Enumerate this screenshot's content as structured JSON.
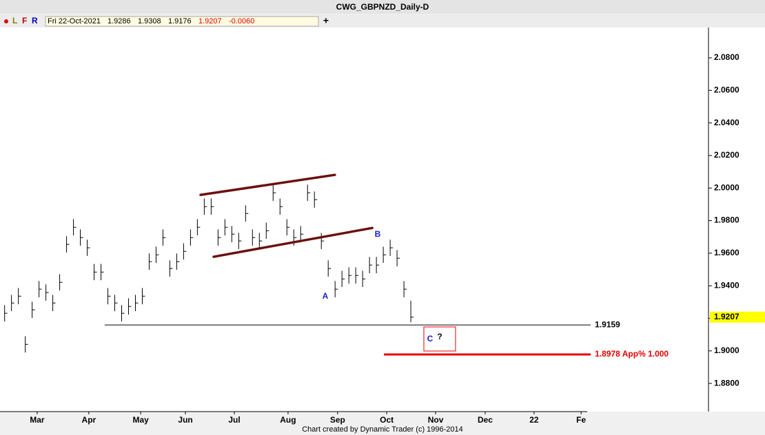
{
  "chart_data": {
    "type": "hlc",
    "title": "CWG_GBPNZD_Daily-D",
    "quote": {
      "date": "Fri 22-Oct-2021",
      "open": "1.9286",
      "high": "1.9308",
      "low": "1.9176",
      "close": "1.9207",
      "change": "-0.0060"
    },
    "toolbar": [
      "L",
      "F",
      "R"
    ],
    "footer": "Chart created by Dynamic Trader  (c) 1996-2014",
    "color": "#000000",
    "x": [
      2,
      5,
      8,
      11,
      14,
      17,
      20,
      23,
      26,
      29,
      32,
      35,
      38,
      41,
      44,
      47,
      50,
      53,
      56,
      59,
      62,
      65,
      68,
      71,
      74,
      77,
      80,
      83,
      86,
      89,
      92,
      95,
      98,
      101,
      104,
      107,
      110,
      113,
      116,
      119,
      122,
      125,
      128,
      131,
      134,
      137,
      140,
      143,
      146,
      149,
      152,
      155,
      158,
      161,
      164,
      167,
      170,
      173,
      176,
      179
    ],
    "high": [
      1.9281,
      1.9344,
      1.9386,
      1.909,
      1.9302,
      1.9429,
      1.9408,
      1.9344,
      1.9471,
      1.9704,
      1.9809,
      1.9746,
      1.9683,
      1.9534,
      1.9534,
      1.9386,
      1.9344,
      1.9281,
      1.9323,
      1.9344,
      1.9386,
      1.9598,
      1.964,
      1.9746,
      1.9556,
      1.9598,
      1.9661,
      1.9746,
      1.9809,
      1.9936,
      1.9936,
      1.9746,
      1.9809,
      1.9767,
      1.9725,
      1.9894,
      1.9746,
      1.9725,
      1.9788,
      2.0021,
      1.9936,
      1.9809,
      1.9746,
      1.9767,
      2.0021,
      1.9979,
      1.9725,
      1.9556,
      1.9429,
      1.9492,
      1.9513,
      1.9513,
      1.9492,
      1.9577,
      1.9577,
      1.964,
      1.9683,
      1.9619,
      1.9429,
      1.9308
    ],
    "low": [
      1.9181,
      1.9244,
      1.9286,
      1.899,
      1.9202,
      1.9329,
      1.9308,
      1.9244,
      1.9371,
      1.9604,
      1.9709,
      1.9646,
      1.9583,
      1.9434,
      1.9434,
      1.9286,
      1.9244,
      1.9181,
      1.9223,
      1.9244,
      1.9286,
      1.9498,
      1.954,
      1.9646,
      1.9456,
      1.9498,
      1.9561,
      1.9646,
      1.9709,
      1.9836,
      1.9836,
      1.9646,
      1.9709,
      1.9667,
      1.9625,
      1.9794,
      1.9646,
      1.9625,
      1.9688,
      1.9921,
      1.9836,
      1.9709,
      1.9646,
      1.9667,
      1.9921,
      1.9879,
      1.9625,
      1.9456,
      1.9329,
      1.9392,
      1.9413,
      1.9413,
      1.9392,
      1.9477,
      1.9477,
      1.954,
      1.9583,
      1.9519,
      1.9329,
      1.9176
    ],
    "close": [
      1.9231,
      1.9294,
      1.9336,
      1.904,
      1.9252,
      1.9379,
      1.9358,
      1.9294,
      1.9421,
      1.9654,
      1.9759,
      1.9696,
      1.9633,
      1.9484,
      1.9484,
      1.9336,
      1.9294,
      1.9231,
      1.9273,
      1.9294,
      1.9336,
      1.9548,
      1.959,
      1.9696,
      1.9506,
      1.9548,
      1.9611,
      1.9696,
      1.9759,
      1.9886,
      1.9886,
      1.9696,
      1.9759,
      1.9717,
      1.9675,
      1.9844,
      1.9696,
      1.9675,
      1.9738,
      1.9971,
      1.9886,
      1.9759,
      1.9696,
      1.9717,
      1.9971,
      1.9929,
      1.9675,
      1.9506,
      1.9379,
      1.9442,
      1.9463,
      1.9463,
      1.9442,
      1.9527,
      1.9527,
      1.959,
      1.9633,
      1.9569,
      1.9379,
      1.9207
    ],
    "xlim": [
      0,
      308.7
    ],
    "xticks": [
      {
        "value": 16.2,
        "label": "Mar"
      },
      {
        "value": 38.7,
        "label": "Apr"
      },
      {
        "value": 61.3,
        "label": "May"
      },
      {
        "value": 80.8,
        "label": "Jun"
      },
      {
        "value": 102.1,
        "label": "Jul"
      },
      {
        "value": 125.5,
        "label": "Aug"
      },
      {
        "value": 147.1,
        "label": "Sep"
      },
      {
        "value": 168.5,
        "label": "Oct"
      },
      {
        "value": 189.8,
        "label": "Nov"
      },
      {
        "value": 211.4,
        "label": "Dec"
      },
      {
        "value": 232.7,
        "label": "22"
      },
      {
        "value": 253.2,
        "label": "Fe"
      }
    ],
    "ylim": [
      1.8627,
      2.0986
    ],
    "yticks": [
      {
        "value": 1.88,
        "label": "1.8800"
      },
      {
        "value": 1.9,
        "label": "1.9000"
      },
      {
        "value": 1.92,
        "label": "1.9200"
      },
      {
        "value": 1.94,
        "label": "1.9400"
      },
      {
        "value": 1.96,
        "label": "1.9600"
      },
      {
        "value": 1.98,
        "label": "1.9800"
      },
      {
        "value": 2.0,
        "label": "2.0000"
      },
      {
        "value": 2.02,
        "label": "2.0200"
      },
      {
        "value": 2.04,
        "label": "2.0400"
      },
      {
        "value": 2.06,
        "label": "2.0600"
      },
      {
        "value": 2.08,
        "label": "2.0800"
      }
    ],
    "trendlines": [
      {
        "color": "#6b1010",
        "x": [
          87.4,
          145.9
        ],
        "y": [
          1.9958,
          2.0081
        ]
      },
      {
        "color": "#6b1010",
        "x": [
          93.1,
          162.2
        ],
        "y": [
          1.9578,
          1.9755
        ]
      }
    ],
    "levels": [
      {
        "color": "#000000",
        "x": [
          45.6,
          257.4
        ],
        "value": 1.9159
      },
      {
        "color": "#e00000",
        "x": [
          167.3,
          257.4
        ],
        "value": 1.8978,
        "label": "1.8978 App% 1.000"
      }
    ],
    "wave_labels": [
      "A",
      "B",
      "C",
      "?"
    ]
  }
}
